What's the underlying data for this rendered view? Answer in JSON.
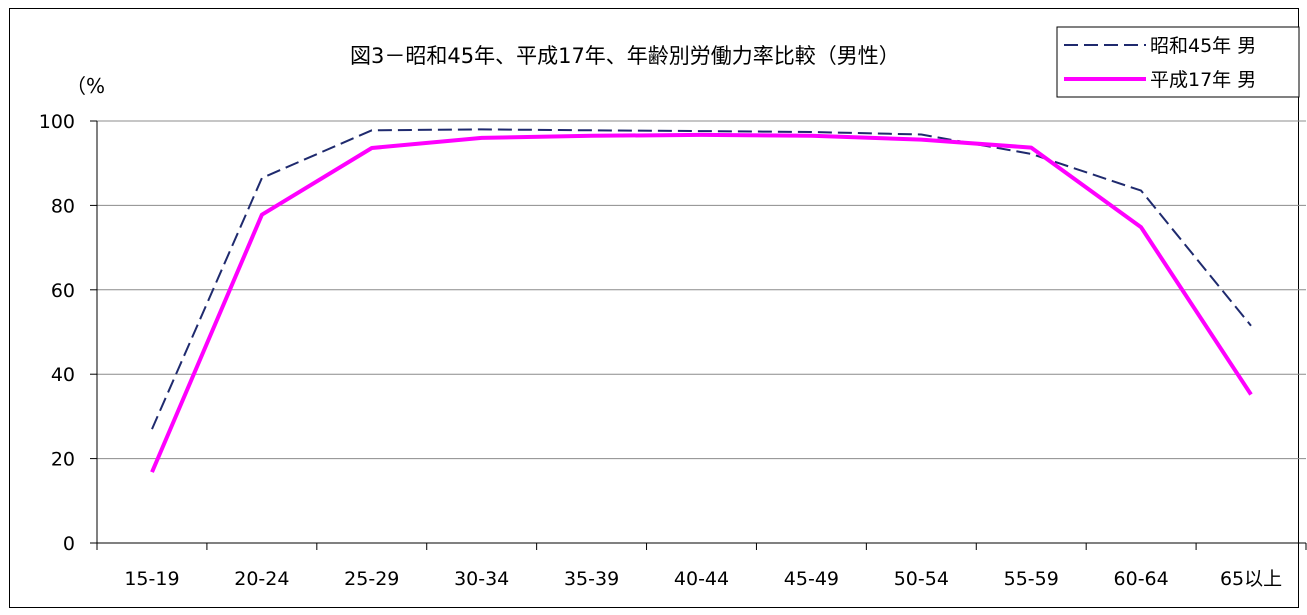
{
  "chart_data": {
    "type": "line",
    "title": "図3－昭和45年、平成17年、年齢別労働力率比較（男性）",
    "ylabel": "（%",
    "xlabel": "",
    "categories": [
      "15-19",
      "20-24",
      "25-29",
      "30-34",
      "35-39",
      "40-44",
      "45-49",
      "50-54",
      "55-59",
      "60-64",
      "65以上"
    ],
    "ylim": [
      0,
      100
    ],
    "yticks": [
      0,
      20,
      40,
      60,
      80,
      100
    ],
    "grid": true,
    "legend_position": "top-right",
    "series": [
      {
        "name": "昭和45年 男",
        "color": "#1f2a6e",
        "style": "dashed",
        "values": [
          27,
          86.5,
          97.8,
          98,
          97.8,
          97.6,
          97.4,
          96.8,
          92.2,
          83.5,
          51.5
        ]
      },
      {
        "name": "平成17年 男",
        "color": "#ff00ff",
        "style": "solid",
        "values": [
          16.8,
          77.8,
          93.6,
          96,
          96.5,
          96.7,
          96.5,
          95.6,
          93.7,
          74.8,
          35.2
        ]
      }
    ]
  }
}
